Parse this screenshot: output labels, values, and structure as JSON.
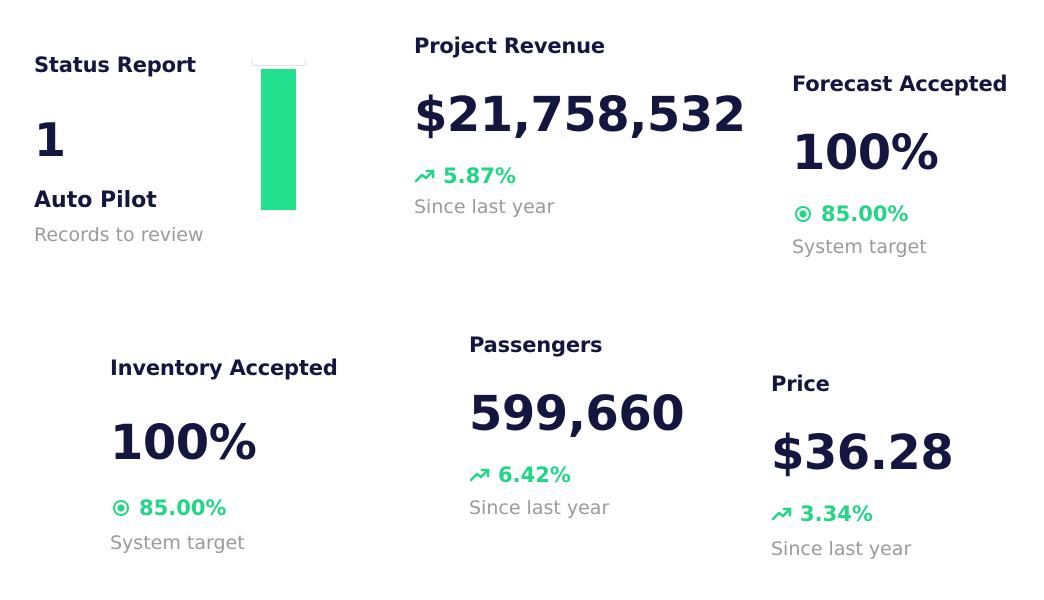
{
  "colors": {
    "text_dark": "#14163f",
    "accent_green": "#22d587",
    "muted": "#9a9a9a",
    "bar_green": "#22e08d"
  },
  "status_report": {
    "title": "Status Report",
    "count": "1",
    "label": "Auto Pilot",
    "sub": "Records to review",
    "bar_fill_fraction": 0.94
  },
  "project_revenue": {
    "title": "Project Revenue",
    "value": "$21,758,532",
    "delta": "5.87%",
    "delta_icon": "trending-up-icon",
    "sub": "Since last year"
  },
  "forecast_accepted": {
    "title": "Forecast Accepted",
    "value": "100%",
    "target": "85.00%",
    "target_icon": "target-dot-icon",
    "sub": "System target"
  },
  "inventory_accepted": {
    "title": "Inventory Accepted",
    "value": "100%",
    "target": "85.00%",
    "target_icon": "target-dot-icon",
    "sub": "System target"
  },
  "passengers": {
    "title": "Passengers",
    "value": "599,660",
    "delta": "6.42%",
    "delta_icon": "trending-up-icon",
    "sub": "Since last year"
  },
  "price": {
    "title": "Price",
    "value": "$36.28",
    "delta": "3.34%",
    "delta_icon": "trending-up-icon",
    "sub": "Since last year"
  }
}
